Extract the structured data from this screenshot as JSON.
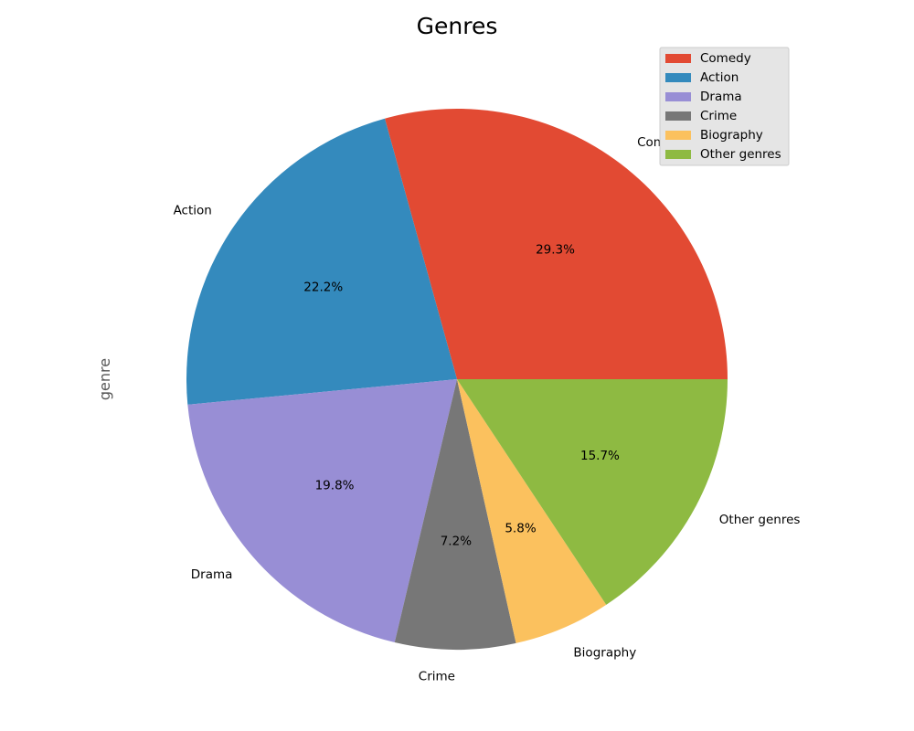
{
  "chart_data": {
    "type": "pie",
    "title": "Genres",
    "ylabel": "genre",
    "categories": [
      "Comedy",
      "Action",
      "Drama",
      "Crime",
      "Biography",
      "Other genres"
    ],
    "values": [
      29.3,
      22.2,
      19.8,
      7.2,
      5.8,
      15.7
    ],
    "value_labels": [
      "29.3%",
      "22.2%",
      "19.8%",
      "7.2%",
      "5.8%",
      "15.7%"
    ],
    "colors": [
      "#E24A33",
      "#348ABD",
      "#988ED5",
      "#777777",
      "#FBC15E",
      "#8EBA42"
    ],
    "legend_position": "top-right"
  }
}
